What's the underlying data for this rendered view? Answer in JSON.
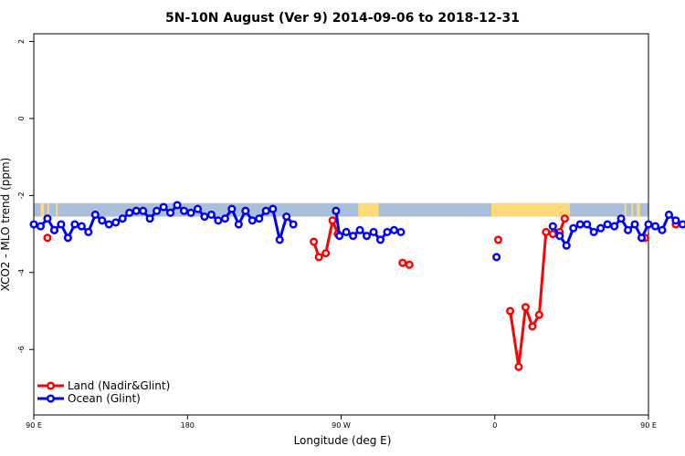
{
  "chart_data": {
    "type": "line",
    "title": "5N-10N August (Ver 9)   2014-09-06 to 2018-12-31",
    "xlabel": "Longitude (deg E)",
    "ylabel": "XCO2 - MLO trend (ppm)",
    "xlim": [
      -90,
      270
    ],
    "ylim": [
      -7.7,
      2.2
    ],
    "x_ticks": [
      {
        "value": -90,
        "label": "90 E"
      },
      {
        "value": 0,
        "label": "180"
      },
      {
        "value": 90,
        "label": "90 W"
      },
      {
        "value": 180,
        "label": "0"
      },
      {
        "value": 270,
        "label": "90 E"
      }
    ],
    "y_ticks": [
      {
        "value": 2,
        "label": "2"
      },
      {
        "value": 0,
        "label": "0"
      },
      {
        "value": -2,
        "label": "-2"
      },
      {
        "value": -4,
        "label": "-4"
      },
      {
        "value": -6,
        "label": "-6"
      }
    ],
    "background_band": {
      "y_range": [
        -2.55,
        -2.2
      ],
      "base_color": "#A9BFDC",
      "land_color": "#FFD97A",
      "land_spans": [
        [
          -86,
          -84
        ],
        [
          -82,
          -81
        ],
        [
          -77,
          -76
        ],
        [
          100,
          112
        ],
        [
          178,
          224
        ],
        [
          256,
          257
        ],
        [
          260,
          261
        ],
        [
          263,
          265
        ]
      ]
    },
    "legend": {
      "placement": "bottom-left",
      "entries": [
        {
          "label": "Land (Nadir&Glint)",
          "color": "#FF0000"
        },
        {
          "label": "Ocean (Glint)",
          "color": "#0000FF"
        }
      ]
    },
    "series": [
      {
        "name": "Ocean (Glint)",
        "color": "#0000FF",
        "segments": [
          [
            [
              -90,
              -2.75
            ],
            [
              -86,
              -2.8
            ],
            [
              -82,
              -2.6
            ],
            [
              -78,
              -2.9
            ],
            [
              -74,
              -2.75
            ],
            [
              -70,
              -3.1
            ],
            [
              -66,
              -2.75
            ],
            [
              -62,
              -2.8
            ],
            [
              -58,
              -2.95
            ],
            [
              -54,
              -2.5
            ],
            [
              -50,
              -2.65
            ],
            [
              -46,
              -2.75
            ],
            [
              -42,
              -2.7
            ],
            [
              -38,
              -2.6
            ],
            [
              -34,
              -2.45
            ],
            [
              -30,
              -2.4
            ],
            [
              -26,
              -2.4
            ],
            [
              -22,
              -2.6
            ],
            [
              -18,
              -2.4
            ],
            [
              -14,
              -2.3
            ],
            [
              -10,
              -2.45
            ],
            [
              -6,
              -2.25
            ],
            [
              -2,
              -2.4
            ],
            [
              2,
              -2.45
            ],
            [
              6,
              -2.35
            ],
            [
              10,
              -2.55
            ],
            [
              14,
              -2.5
            ],
            [
              18,
              -2.65
            ],
            [
              22,
              -2.6
            ],
            [
              26,
              -2.35
            ],
            [
              30,
              -2.75
            ],
            [
              34,
              -2.4
            ],
            [
              38,
              -2.65
            ],
            [
              42,
              -2.6
            ],
            [
              46,
              -2.4
            ],
            [
              50,
              -2.35
            ],
            [
              54,
              -3.15
            ],
            [
              58,
              -2.55
            ],
            [
              62,
              -2.75
            ]
          ],
          [
            [
              87,
              -2.4
            ],
            [
              89,
              -3.05
            ],
            [
              93,
              -2.95
            ],
            [
              97,
              -3.05
            ],
            [
              101,
              -2.9
            ],
            [
              105,
              -3.05
            ],
            [
              109,
              -2.95
            ],
            [
              113,
              -3.15
            ],
            [
              117,
              -2.95
            ],
            [
              121,
              -2.9
            ],
            [
              125,
              -2.95
            ]
          ],
          [
            [
              181,
              -3.6
            ]
          ],
          [
            [
              214,
              -2.8
            ],
            [
              218,
              -3.05
            ],
            [
              222,
              -3.3
            ],
            [
              226,
              -2.85
            ],
            [
              230,
              -2.75
            ],
            [
              234,
              -2.75
            ],
            [
              238,
              -2.95
            ],
            [
              242,
              -2.85
            ],
            [
              246,
              -2.75
            ],
            [
              250,
              -2.8
            ],
            [
              254,
              -2.6
            ],
            [
              258,
              -2.9
            ],
            [
              262,
              -2.75
            ],
            [
              266,
              -3.1
            ],
            [
              270,
              -2.75
            ],
            [
              274,
              -2.8
            ],
            [
              278,
              -2.9
            ],
            [
              282,
              -2.5
            ],
            [
              286,
              -2.65
            ],
            [
              290,
              -2.75
            ],
            [
              294,
              -2.7
            ],
            [
              298,
              -2.55
            ],
            [
              302,
              -2.4
            ],
            [
              306,
              -2.4
            ],
            [
              310,
              -2.35
            ],
            [
              314,
              -2.6
            ]
          ]
        ]
      },
      {
        "name": "Land (Nadir&Glint)",
        "color": "#FF0000",
        "segments": [
          [
            [
              -82,
              -3.1
            ]
          ],
          [
            [
              -78,
              -2.9
            ]
          ],
          [
            [
              74,
              -3.2
            ],
            [
              77,
              -3.6
            ],
            [
              81,
              -3.5
            ],
            [
              85,
              -2.65
            ],
            [
              88,
              -3.0
            ]
          ],
          [
            [
              126,
              -3.75
            ],
            [
              130,
              -3.8
            ]
          ],
          [
            [
              182,
              -3.15
            ]
          ],
          [
            [
              189,
              -5.0
            ],
            [
              194,
              -6.45
            ],
            [
              198,
              -4.9
            ],
            [
              202,
              -5.4
            ],
            [
              206,
              -5.1
            ],
            [
              210,
              -2.95
            ],
            [
              214,
              -3.0
            ],
            [
              218,
              -2.95
            ],
            [
              221,
              -2.6
            ]
          ],
          [
            [
              268,
              -3.1
            ]
          ],
          [
            [
              286,
              -2.75
            ]
          ],
          [
            [
              302,
              -2.95
            ]
          ]
        ]
      }
    ]
  }
}
